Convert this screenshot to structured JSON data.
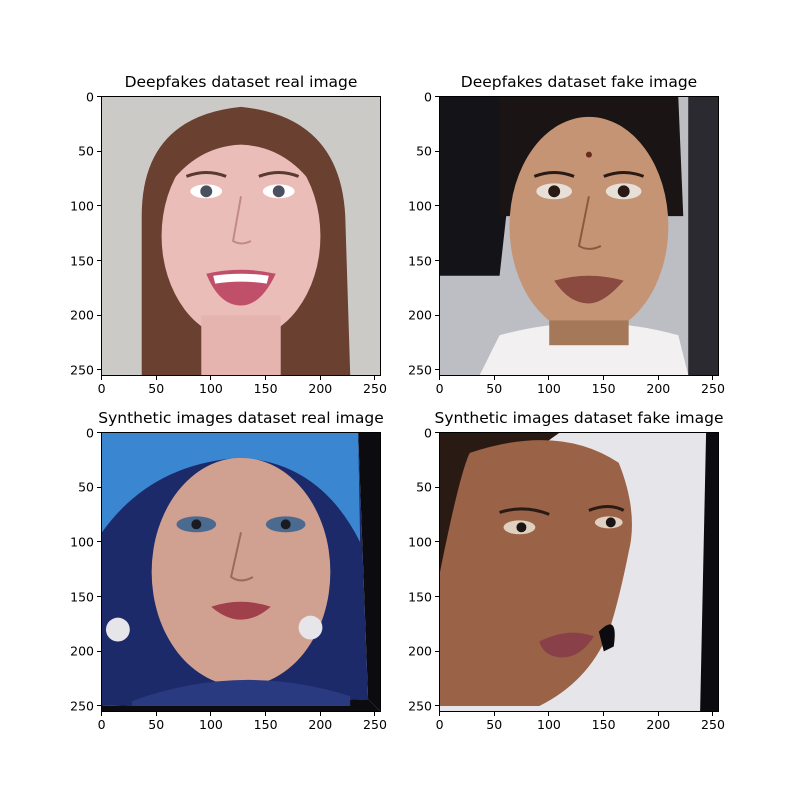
{
  "panels": [
    {
      "title": "Deepfakes dataset real image"
    },
    {
      "title": "Deepfakes dataset fake image"
    },
    {
      "title": "Synthetic images dataset real image"
    },
    {
      "title": "Synthetic images dataset fake image"
    }
  ],
  "x_ticks": [
    "0",
    "50",
    "100",
    "150",
    "200",
    "250"
  ],
  "y_ticks": [
    "0",
    "50",
    "100",
    "150",
    "200",
    "250"
  ],
  "colors": {
    "skin_light": "#e8b8b0",
    "skin_tan": "#c09070",
    "skin_dark": "#8a5a40",
    "hair_brown": "#6a4030",
    "hair_black": "#1a1414",
    "hair_blue": "#3a86d0",
    "bg_gray": "#c8c8c4",
    "bg_white": "#e6e6ea",
    "bg_blue": "#1c2a6a"
  }
}
